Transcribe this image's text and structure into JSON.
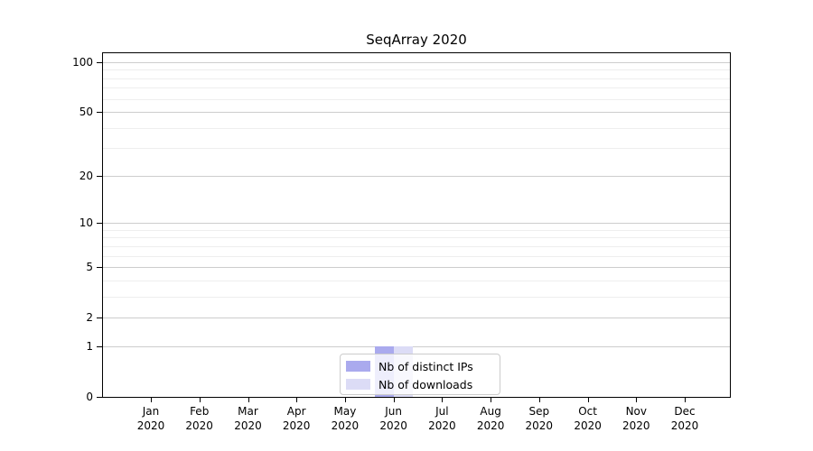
{
  "chart_data": {
    "type": "bar",
    "title": "SeqArray 2020",
    "x": {
      "categories": [
        "Jan",
        "Feb",
        "Mar",
        "Apr",
        "May",
        "Jun",
        "Jul",
        "Aug",
        "Sep",
        "Oct",
        "Nov",
        "Dec"
      ],
      "year_label": "2020"
    },
    "y": {
      "scale": "log10(1+x)",
      "tick_values": [
        0,
        1,
        2,
        5,
        10,
        20,
        50,
        100
      ],
      "tick_labels": [
        "0",
        "1",
        "2",
        "5",
        "10",
        "20",
        "50",
        "100"
      ],
      "major_gridlines": [
        1,
        2,
        5,
        10,
        20,
        50,
        100
      ],
      "minor_gridlines": [
        3,
        4,
        6,
        7,
        8,
        9,
        30,
        40,
        60,
        70,
        80,
        90
      ]
    },
    "series": [
      {
        "name": "Nb of distinct IPs",
        "color": "#aaaaee",
        "values": [
          0,
          0,
          0,
          0,
          0,
          1,
          0,
          0,
          0,
          0,
          0,
          0
        ]
      },
      {
        "name": "Nb of downloads",
        "color": "#dcdcf6",
        "values": [
          0,
          0,
          0,
          0,
          0,
          1,
          0,
          0,
          0,
          0,
          0,
          0
        ]
      }
    ],
    "legend_position": "bottom-center",
    "grid": true,
    "colors": {
      "axis": "#000000",
      "major_grid": "#cdcdcd",
      "minor_grid": "#eeeeee",
      "background": "#ffffff"
    }
  }
}
